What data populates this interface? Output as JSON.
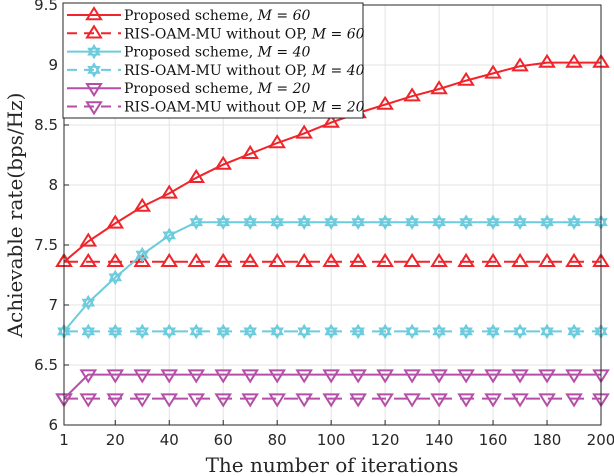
{
  "chart_data": {
    "type": "line",
    "title": "",
    "xlabel": "The number of iterations",
    "ylabel": "Achievable rate(bps/Hz)",
    "xlim": [
      1,
      200
    ],
    "ylim": [
      6,
      9.5
    ],
    "grid": true,
    "legend_position": "top-left",
    "xticks": [
      "1",
      "20",
      "40",
      "60",
      "80",
      "100",
      "120",
      "140",
      "160",
      "180",
      "200"
    ],
    "xtick_values": [
      1,
      20,
      40,
      60,
      80,
      100,
      120,
      140,
      160,
      180,
      200
    ],
    "yticks": [
      "6",
      "6.5",
      "7",
      "7.5",
      "8",
      "8.5",
      "9",
      "9.5"
    ],
    "ytick_values": [
      6,
      6.5,
      7,
      7.5,
      8,
      8.5,
      9,
      9.5
    ],
    "x": [
      1,
      10,
      20,
      30,
      40,
      50,
      60,
      70,
      80,
      90,
      100,
      110,
      120,
      130,
      140,
      150,
      160,
      170,
      180,
      190,
      200
    ],
    "series": [
      {
        "name": "Proposed scheme, ",
        "m_label": "M = 60",
        "color": "#f0242a",
        "dash": false,
        "marker": "triangle-up",
        "values": [
          7.36,
          7.53,
          7.68,
          7.82,
          7.93,
          8.06,
          8.17,
          8.26,
          8.35,
          8.43,
          8.52,
          8.6,
          8.67,
          8.74,
          8.8,
          8.87,
          8.93,
          8.99,
          9.02,
          9.02,
          9.02
        ]
      },
      {
        "name": "RIS-OAM-MU without OP, ",
        "m_label": "M = 60",
        "color": "#f0242a",
        "dash": true,
        "marker": "triangle-up",
        "values": [
          7.36,
          7.36,
          7.36,
          7.36,
          7.36,
          7.36,
          7.36,
          7.36,
          7.36,
          7.36,
          7.36,
          7.36,
          7.36,
          7.36,
          7.36,
          7.36,
          7.36,
          7.36,
          7.36,
          7.36,
          7.36
        ]
      },
      {
        "name": "Proposed scheme, ",
        "m_label": "M = 40",
        "color": "#6ccbdc",
        "dash": false,
        "marker": "hexagram",
        "values": [
          6.78,
          7.02,
          7.23,
          7.42,
          7.58,
          7.69,
          7.69,
          7.69,
          7.69,
          7.69,
          7.69,
          7.69,
          7.69,
          7.69,
          7.69,
          7.69,
          7.69,
          7.69,
          7.69,
          7.69,
          7.69
        ]
      },
      {
        "name": "RIS-OAM-MU without OP, ",
        "m_label": "M = 40",
        "color": "#6ccbdc",
        "dash": true,
        "marker": "hexagram",
        "values": [
          6.78,
          6.78,
          6.78,
          6.78,
          6.78,
          6.78,
          6.78,
          6.78,
          6.78,
          6.78,
          6.78,
          6.78,
          6.78,
          6.78,
          6.78,
          6.78,
          6.78,
          6.78,
          6.78,
          6.78,
          6.78
        ]
      },
      {
        "name": "Proposed scheme, ",
        "m_label": "M = 20",
        "color": "#b54ea8",
        "dash": false,
        "marker": "triangle-down",
        "values": [
          6.22,
          6.42,
          6.42,
          6.42,
          6.42,
          6.42,
          6.42,
          6.42,
          6.42,
          6.42,
          6.42,
          6.42,
          6.42,
          6.42,
          6.42,
          6.42,
          6.42,
          6.42,
          6.42,
          6.42,
          6.42
        ]
      },
      {
        "name": "RIS-OAM-MU without OP, ",
        "m_label": "M = 20",
        "color": "#b54ea8",
        "dash": true,
        "marker": "triangle-down",
        "values": [
          6.22,
          6.22,
          6.22,
          6.22,
          6.22,
          6.22,
          6.22,
          6.22,
          6.22,
          6.22,
          6.22,
          6.22,
          6.22,
          6.22,
          6.22,
          6.22,
          6.22,
          6.22,
          6.22,
          6.22,
          6.22
        ]
      }
    ]
  }
}
